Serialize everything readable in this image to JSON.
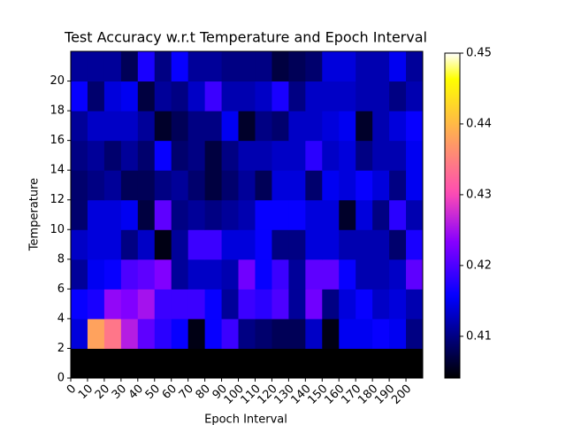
{
  "chart_data": {
    "type": "heatmap",
    "title": "Test Accuracy w.r.t Temperature and Epoch Interval",
    "xlabel": "Epoch Interval",
    "ylabel": "Temperature",
    "colormap": "gnuplot2",
    "x": [
      0,
      10,
      20,
      30,
      40,
      50,
      60,
      70,
      80,
      90,
      100,
      110,
      120,
      130,
      140,
      150,
      160,
      170,
      180,
      190,
      200
    ],
    "y": [
      0,
      2,
      4,
      6,
      8,
      10,
      12,
      14,
      16,
      18,
      20
    ],
    "xlim": [
      0,
      210
    ],
    "ylim": [
      0,
      22
    ],
    "xticks": [
      0,
      10,
      20,
      30,
      40,
      50,
      60,
      70,
      80,
      90,
      100,
      110,
      120,
      130,
      140,
      150,
      160,
      170,
      180,
      190,
      200
    ],
    "yticks": [
      0,
      2,
      4,
      6,
      8,
      10,
      12,
      14,
      16,
      18,
      20
    ],
    "z": [
      [
        0.404,
        0.404,
        0.404,
        0.404,
        0.404,
        0.404,
        0.404,
        0.404,
        0.404,
        0.404,
        0.404,
        0.404,
        0.404,
        0.404,
        0.404,
        0.404,
        0.404,
        0.404,
        0.404,
        0.404,
        0.404
      ],
      [
        0.414,
        0.438,
        0.434,
        0.426,
        0.421,
        0.418,
        0.416,
        0.405,
        0.416,
        0.419,
        0.41,
        0.409,
        0.408,
        0.408,
        0.413,
        0.405,
        0.415,
        0.415,
        0.416,
        0.415,
        0.41
      ],
      [
        0.416,
        0.417,
        0.424,
        0.423,
        0.425,
        0.419,
        0.419,
        0.419,
        0.416,
        0.411,
        0.419,
        0.418,
        0.42,
        0.411,
        0.422,
        0.41,
        0.414,
        0.416,
        0.413,
        0.414,
        0.412
      ],
      [
        0.411,
        0.415,
        0.416,
        0.42,
        0.421,
        0.423,
        0.411,
        0.413,
        0.413,
        0.412,
        0.422,
        0.416,
        0.419,
        0.411,
        0.421,
        0.421,
        0.416,
        0.412,
        0.412,
        0.413,
        0.421
      ],
      [
        0.413,
        0.414,
        0.414,
        0.41,
        0.413,
        0.405,
        0.411,
        0.419,
        0.419,
        0.414,
        0.414,
        0.416,
        0.41,
        0.41,
        0.414,
        0.414,
        0.412,
        0.412,
        0.412,
        0.409,
        0.417
      ],
      [
        0.409,
        0.414,
        0.414,
        0.415,
        0.407,
        0.421,
        0.41,
        0.411,
        0.41,
        0.411,
        0.412,
        0.416,
        0.416,
        0.416,
        0.414,
        0.414,
        0.406,
        0.414,
        0.41,
        0.418,
        0.412
      ],
      [
        0.409,
        0.41,
        0.411,
        0.408,
        0.408,
        0.41,
        0.411,
        0.409,
        0.407,
        0.409,
        0.411,
        0.408,
        0.414,
        0.414,
        0.409,
        0.415,
        0.414,
        0.416,
        0.414,
        0.41,
        0.415
      ],
      [
        0.41,
        0.411,
        0.409,
        0.411,
        0.409,
        0.416,
        0.409,
        0.41,
        0.407,
        0.41,
        0.412,
        0.412,
        0.413,
        0.413,
        0.418,
        0.413,
        0.414,
        0.41,
        0.412,
        0.412,
        0.415
      ],
      [
        0.411,
        0.413,
        0.413,
        0.413,
        0.411,
        0.406,
        0.408,
        0.41,
        0.41,
        0.415,
        0.406,
        0.41,
        0.409,
        0.413,
        0.413,
        0.414,
        0.415,
        0.406,
        0.412,
        0.414,
        0.416
      ],
      [
        0.416,
        0.409,
        0.414,
        0.415,
        0.407,
        0.411,
        0.41,
        0.413,
        0.419,
        0.412,
        0.412,
        0.413,
        0.417,
        0.41,
        0.413,
        0.413,
        0.413,
        0.412,
        0.412,
        0.41,
        0.412
      ],
      [
        0.411,
        0.411,
        0.411,
        0.408,
        0.417,
        0.41,
        0.416,
        0.411,
        0.411,
        0.41,
        0.41,
        0.41,
        0.407,
        0.408,
        0.409,
        0.414,
        0.414,
        0.412,
        0.412,
        0.415,
        0.411
      ]
    ],
    "colorbar": {
      "lim": [
        0.4041,
        0.45
      ],
      "ticks": [
        0.41,
        0.42,
        0.43,
        0.44,
        0.45
      ]
    }
  }
}
